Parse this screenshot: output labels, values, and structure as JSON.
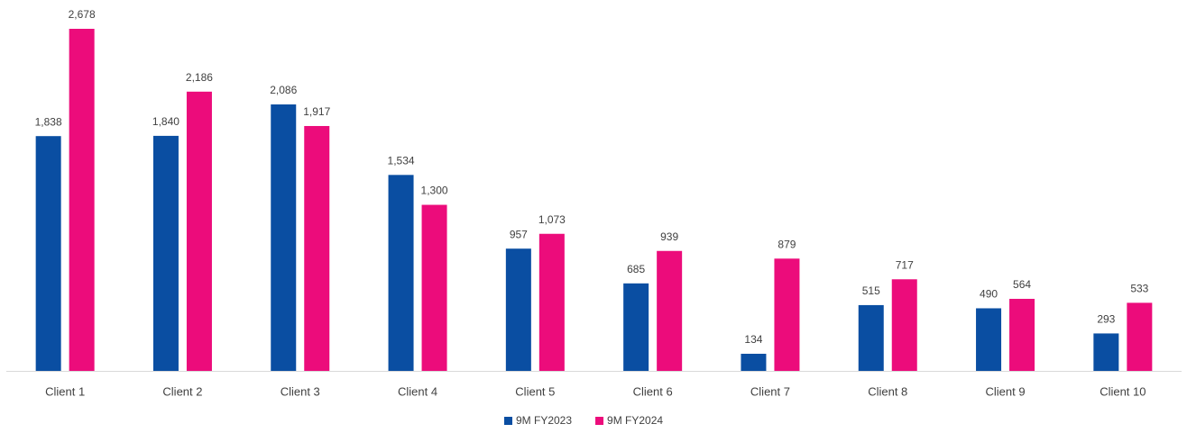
{
  "chart_data": {
    "type": "bar",
    "categories": [
      "Client 1",
      "Client 2",
      "Client 3",
      "Client 4",
      "Client 5",
      "Client 6",
      "Client 7",
      "Client 8",
      "Client 9",
      "Client 10"
    ],
    "series": [
      {
        "name": "9M FY2023",
        "color": "#0a4ea2",
        "values": [
          1838,
          1840,
          2086,
          1534,
          957,
          685,
          134,
          515,
          490,
          293
        ],
        "value_labels": [
          "1,838",
          "1,840",
          "2,086",
          "1,534",
          "957",
          "685",
          "134",
          "515",
          "490",
          "293"
        ]
      },
      {
        "name": "9M FY2024",
        "color": "#ec0c7b",
        "values": [
          2678,
          2186,
          1917,
          1300,
          1073,
          939,
          879,
          717,
          564,
          533
        ],
        "value_labels": [
          "2,678",
          "2,186",
          "1,917",
          "1,300",
          "1,073",
          "939",
          "879",
          "717",
          "564",
          "533"
        ]
      }
    ],
    "legend": "bottom"
  }
}
